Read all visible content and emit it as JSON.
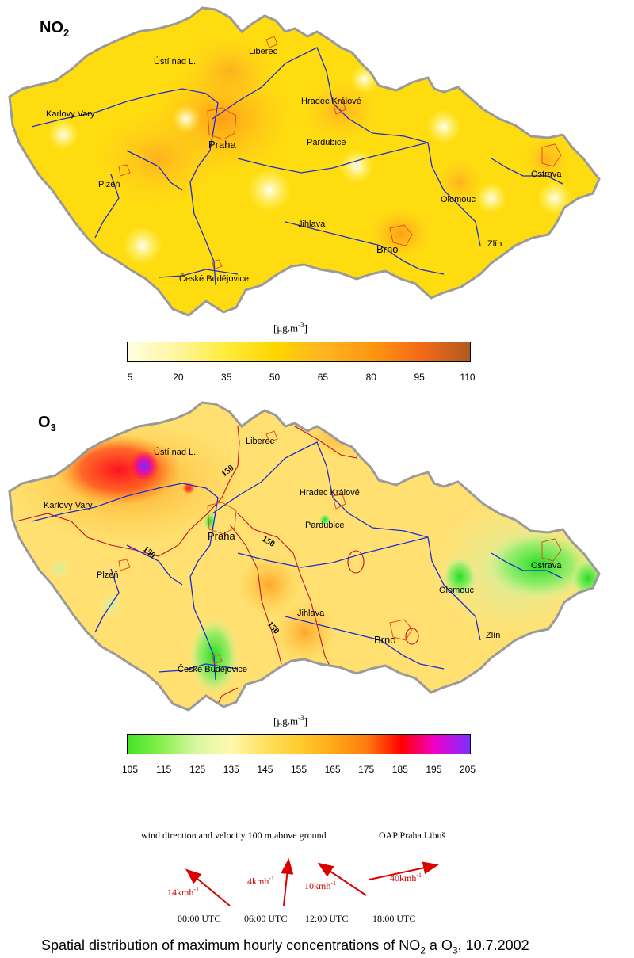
{
  "maps": {
    "no2": {
      "title_main": "NO",
      "title_sub": "2",
      "unit_main": "[μg.m",
      "unit_sup": "-3",
      "unit_end": "]",
      "scale": {
        "ticks": [
          "5",
          "20",
          "35",
          "50",
          "65",
          "80",
          "95",
          "110"
        ],
        "colors": [
          "#ffffe0",
          "#fff5a0",
          "#ffec3c",
          "#ffd700",
          "#ffb520",
          "#ff9610",
          "#f46a18",
          "#b05a20"
        ]
      }
    },
    "o3": {
      "title_main": "O",
      "title_sub": "3",
      "unit_main": "[μg.m",
      "unit_sup": "-3",
      "unit_end": "]",
      "scale": {
        "ticks": [
          "105",
          "115",
          "125",
          "135",
          "145",
          "155",
          "165",
          "175",
          "185",
          "195",
          "205"
        ],
        "colors": [
          "#44e424",
          "#88f050",
          "#d8f7a0",
          "#fff8b0",
          "#ffe060",
          "#ffcc30",
          "#ffa818",
          "#ff7a10",
          "#ff0000",
          "#ee00cc",
          "#7a30ff"
        ]
      },
      "contour_value": "150"
    },
    "cities": {
      "usti": "Ústí nad L.",
      "liberec": "Liberec",
      "karlovy_vary": "Karlovy Vary",
      "hradec": "Hradec Králové",
      "praha": "Praha",
      "pardubice": "Pardubice",
      "plzen": "Plzeň",
      "ostrava": "Ostrava",
      "olomouc": "Olomouc",
      "jihlava": "Jihlava",
      "brno": "Brno",
      "zlin": "Zlín",
      "ceske_budejovice": "České Budějovice"
    }
  },
  "wind": {
    "caption": "wind direction and velocity  100 m above ground",
    "station": "OAP Praha Libuš",
    "unit_sup": "-1",
    "arrows": [
      {
        "value": "14kmh",
        "time": "00:00  UTC"
      },
      {
        "value": "4kmh",
        "time": "06:00  UTC"
      },
      {
        "value": "10kmh",
        "time": "12:00  UTC"
      },
      {
        "value": "40kmh",
        "time": "18:00  UTC"
      }
    ]
  },
  "footer": {
    "text_before": "Spatial distribution of maximum hourly concentrations of NO",
    "sub1": "2",
    "text_mid": " a O",
    "sub2": "3",
    "text_after": ", 10.7.2002"
  }
}
